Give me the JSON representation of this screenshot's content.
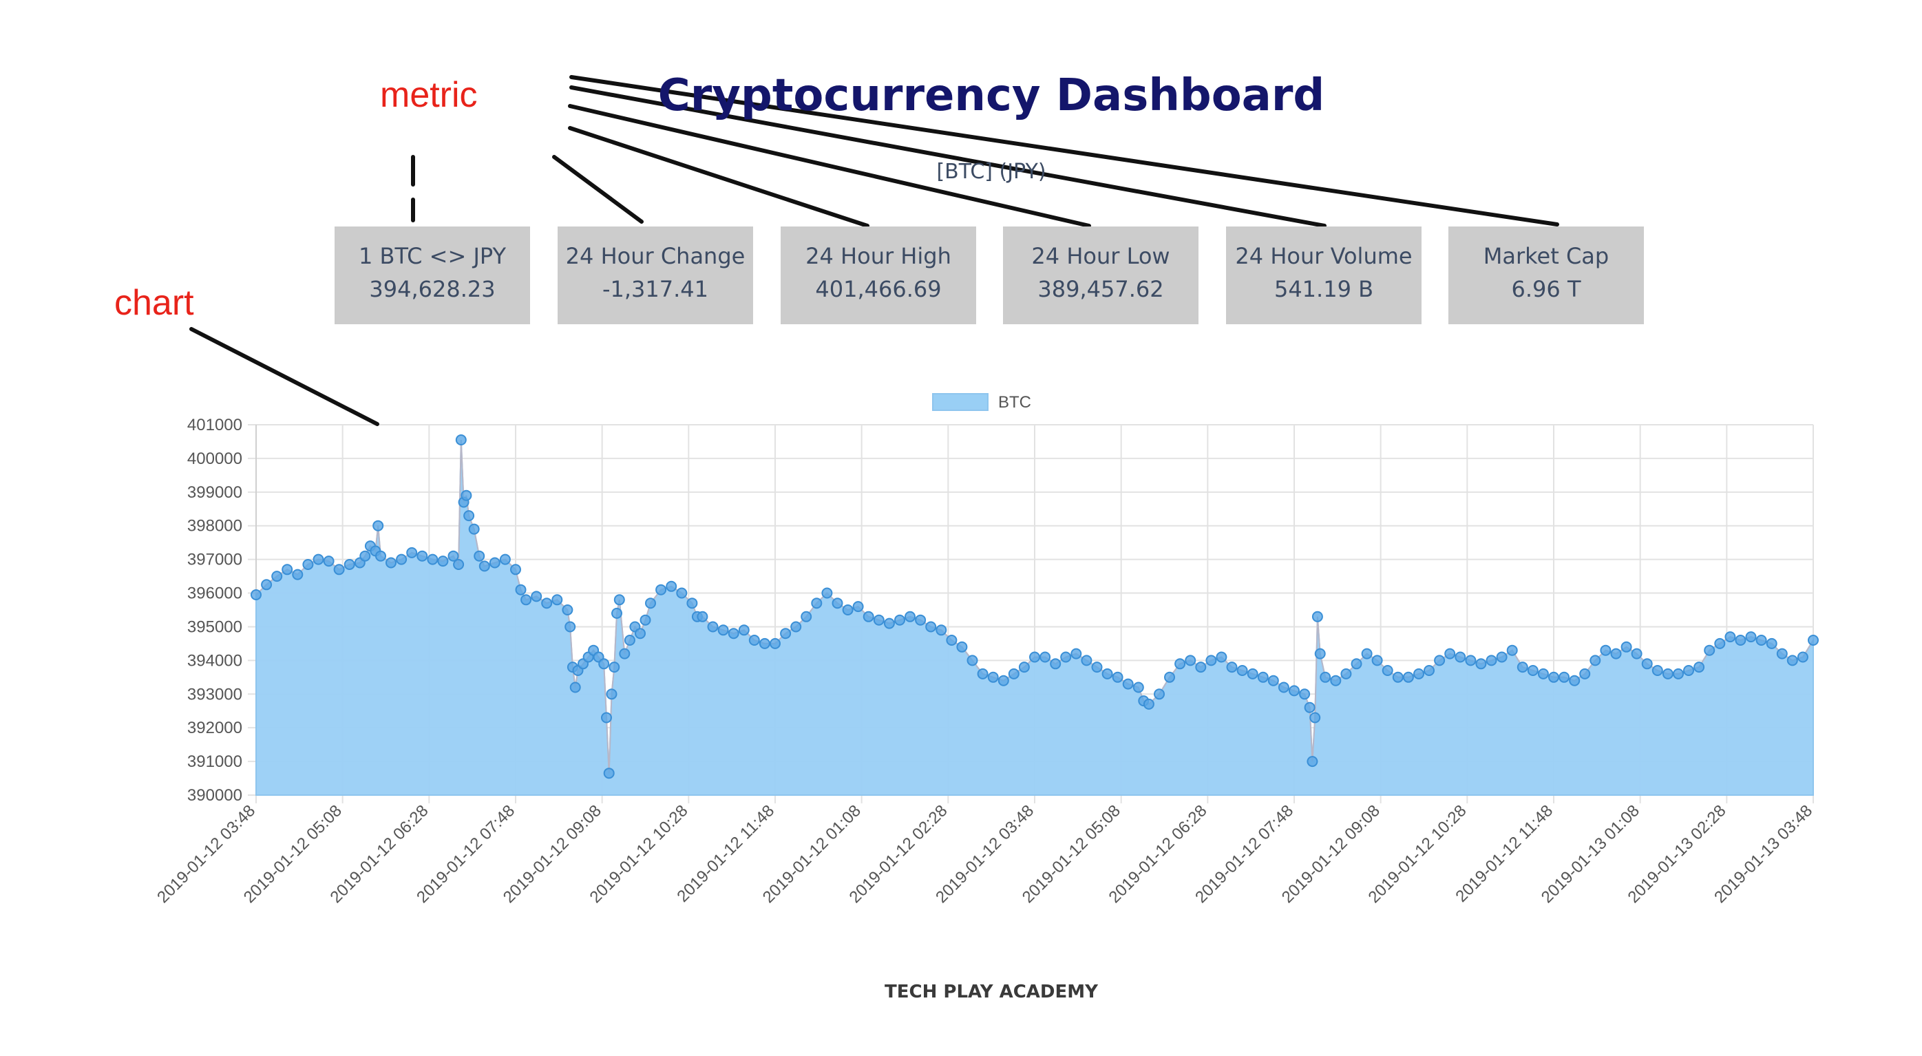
{
  "dashboard": {
    "title": "Cryptocurrency Dashboard",
    "subtitle": "[BTC] (JPY)",
    "footer": "TECH PLAY ACADEMY",
    "annotations": {
      "metric": "metric",
      "chart": "chart"
    },
    "metrics": [
      {
        "label": "1 BTC <> JPY",
        "value": "394,628.23"
      },
      {
        "label": "24 Hour Change",
        "value": "-1,317.41"
      },
      {
        "label": "24 Hour High",
        "value": "401,466.69"
      },
      {
        "label": "24 Hour Low",
        "value": "389,457.62"
      },
      {
        "label": "24 Hour Volume",
        "value": "541.19 B"
      },
      {
        "label": "Market Cap",
        "value": "6.96 T"
      }
    ]
  },
  "colors": {
    "title": "#14166b",
    "annotation": "#e8231a",
    "card_bg": "#cccccc",
    "area_fill": "#99cff5",
    "point": "#3a8fd6"
  },
  "chart_data": {
    "type": "area",
    "legend": {
      "label": "BTC",
      "position": "top"
    },
    "grid": true,
    "ylim": [
      390000,
      401000
    ],
    "yticks": [
      "401000",
      "400000",
      "399000",
      "398000",
      "397000",
      "396000",
      "395000",
      "394000",
      "393000",
      "392000",
      "391000",
      "390000"
    ],
    "xticks": [
      "2019-01-12 03:48",
      "2019-01-12 05:08",
      "2019-01-12 06:28",
      "2019-01-12 07:48",
      "2019-01-12 09:08",
      "2019-01-12 10:28",
      "2019-01-12 11:48",
      "2019-01-12 01:08",
      "2019-01-12 02:28",
      "2019-01-12 03:48",
      "2019-01-12 05:08",
      "2019-01-12 06:28",
      "2019-01-12 07:48",
      "2019-01-12 09:08",
      "2019-01-12 10:28",
      "2019-01-12 11:48",
      "2019-01-13 01:08",
      "2019-01-13 02:28",
      "2019-01-13 03:48"
    ],
    "series": [
      {
        "name": "BTC",
        "points": [
          [
            0,
            395950
          ],
          [
            0.2,
            396250
          ],
          [
            0.4,
            396500
          ],
          [
            0.6,
            396700
          ],
          [
            0.8,
            396550
          ],
          [
            1.0,
            396850
          ],
          [
            1.2,
            397000
          ],
          [
            1.4,
            396950
          ],
          [
            1.6,
            396700
          ],
          [
            1.8,
            396850
          ],
          [
            2.0,
            396900
          ],
          [
            2.1,
            397100
          ],
          [
            2.2,
            397400
          ],
          [
            2.3,
            397250
          ],
          [
            2.35,
            398000
          ],
          [
            2.4,
            397100
          ],
          [
            2.6,
            396900
          ],
          [
            2.8,
            397000
          ],
          [
            3.0,
            397200
          ],
          [
            3.2,
            397100
          ],
          [
            3.4,
            397000
          ],
          [
            3.6,
            396950
          ],
          [
            3.8,
            397100
          ],
          [
            3.9,
            396850
          ],
          [
            3.95,
            400550
          ],
          [
            4.0,
            398700
          ],
          [
            4.05,
            398900
          ],
          [
            4.1,
            398300
          ],
          [
            4.2,
            397900
          ],
          [
            4.3,
            397100
          ],
          [
            4.4,
            396800
          ],
          [
            4.6,
            396900
          ],
          [
            4.8,
            397000
          ],
          [
            5.0,
            396700
          ],
          [
            5.1,
            396100
          ],
          [
            5.2,
            395800
          ],
          [
            5.4,
            395900
          ],
          [
            5.6,
            395700
          ],
          [
            5.8,
            395800
          ],
          [
            6.0,
            395500
          ],
          [
            6.05,
            395000
          ],
          [
            6.1,
            393800
          ],
          [
            6.15,
            393200
          ],
          [
            6.2,
            393700
          ],
          [
            6.3,
            393900
          ],
          [
            6.4,
            394100
          ],
          [
            6.5,
            394300
          ],
          [
            6.6,
            394100
          ],
          [
            6.7,
            393900
          ],
          [
            6.75,
            392300
          ],
          [
            6.8,
            390650
          ],
          [
            6.85,
            393000
          ],
          [
            6.9,
            393800
          ],
          [
            6.95,
            395400
          ],
          [
            7.0,
            395800
          ],
          [
            7.1,
            394200
          ],
          [
            7.2,
            394600
          ],
          [
            7.3,
            395000
          ],
          [
            7.4,
            394800
          ],
          [
            7.5,
            395200
          ],
          [
            7.6,
            395700
          ],
          [
            7.8,
            396100
          ],
          [
            8.0,
            396200
          ],
          [
            8.2,
            396000
          ],
          [
            8.4,
            395700
          ],
          [
            8.5,
            395300
          ],
          [
            8.6,
            395300
          ],
          [
            8.8,
            395000
          ],
          [
            9.0,
            394900
          ],
          [
            9.2,
            394800
          ],
          [
            9.4,
            394900
          ],
          [
            9.6,
            394600
          ],
          [
            9.8,
            394500
          ],
          [
            10.0,
            394500
          ],
          [
            10.2,
            394800
          ],
          [
            10.4,
            395000
          ],
          [
            10.6,
            395300
          ],
          [
            10.8,
            395700
          ],
          [
            11.0,
            396000
          ],
          [
            11.2,
            395700
          ],
          [
            11.4,
            395500
          ],
          [
            11.6,
            395600
          ],
          [
            11.8,
            395300
          ],
          [
            12.0,
            395200
          ],
          [
            12.2,
            395100
          ],
          [
            12.4,
            395200
          ],
          [
            12.6,
            395300
          ],
          [
            12.8,
            395200
          ],
          [
            13.0,
            395000
          ],
          [
            13.2,
            394900
          ],
          [
            13.4,
            394600
          ],
          [
            13.6,
            394400
          ],
          [
            13.8,
            394000
          ],
          [
            14.0,
            393600
          ],
          [
            14.2,
            393500
          ],
          [
            14.4,
            393400
          ],
          [
            14.6,
            393600
          ],
          [
            14.8,
            393800
          ],
          [
            15.0,
            394100
          ],
          [
            15.2,
            394100
          ],
          [
            15.4,
            393900
          ],
          [
            15.6,
            394100
          ],
          [
            15.8,
            394200
          ],
          [
            16.0,
            394000
          ],
          [
            16.2,
            393800
          ],
          [
            16.4,
            393600
          ],
          [
            16.6,
            393500
          ],
          [
            16.8,
            393300
          ],
          [
            17.0,
            393200
          ],
          [
            17.1,
            392800
          ],
          [
            17.2,
            392700
          ],
          [
            17.4,
            393000
          ],
          [
            17.6,
            393500
          ],
          [
            17.8,
            393900
          ],
          [
            18.0,
            394000
          ],
          [
            18.2,
            393800
          ],
          [
            18.4,
            394000
          ],
          [
            18.6,
            394100
          ],
          [
            18.8,
            393800
          ],
          [
            19.0,
            393700
          ],
          [
            19.2,
            393600
          ],
          [
            19.4,
            393500
          ],
          [
            19.6,
            393400
          ],
          [
            19.8,
            393200
          ],
          [
            20.0,
            393100
          ],
          [
            20.2,
            393000
          ],
          [
            20.3,
            392600
          ],
          [
            20.35,
            391000
          ],
          [
            20.4,
            392300
          ],
          [
            20.45,
            395300
          ],
          [
            20.5,
            394200
          ],
          [
            20.6,
            393500
          ],
          [
            20.8,
            393400
          ],
          [
            21.0,
            393600
          ],
          [
            21.2,
            393900
          ],
          [
            21.4,
            394200
          ],
          [
            21.6,
            394000
          ],
          [
            21.8,
            393700
          ],
          [
            22.0,
            393500
          ],
          [
            22.2,
            393500
          ],
          [
            22.4,
            393600
          ],
          [
            22.6,
            393700
          ],
          [
            22.8,
            394000
          ],
          [
            23.0,
            394200
          ],
          [
            23.2,
            394100
          ],
          [
            23.4,
            394000
          ],
          [
            23.6,
            393900
          ],
          [
            23.8,
            394000
          ],
          [
            24.0,
            394100
          ],
          [
            24.2,
            394300
          ],
          [
            24.4,
            393800
          ],
          [
            24.6,
            393700
          ],
          [
            24.8,
            393600
          ],
          [
            25.0,
            393500
          ],
          [
            25.2,
            393500
          ],
          [
            25.4,
            393400
          ],
          [
            25.6,
            393600
          ],
          [
            25.8,
            394000
          ],
          [
            26.0,
            394300
          ],
          [
            26.2,
            394200
          ],
          [
            26.4,
            394400
          ],
          [
            26.6,
            394200
          ],
          [
            26.8,
            393900
          ],
          [
            27.0,
            393700
          ],
          [
            27.2,
            393600
          ],
          [
            27.4,
            393600
          ],
          [
            27.6,
            393700
          ],
          [
            27.8,
            393800
          ],
          [
            28.0,
            394300
          ],
          [
            28.2,
            394500
          ],
          [
            28.4,
            394700
          ],
          [
            28.6,
            394600
          ],
          [
            28.8,
            394700
          ],
          [
            29.0,
            394600
          ],
          [
            29.2,
            394500
          ],
          [
            29.4,
            394200
          ],
          [
            29.6,
            394000
          ],
          [
            29.8,
            394100
          ],
          [
            30.0,
            394600
          ]
        ]
      }
    ]
  }
}
